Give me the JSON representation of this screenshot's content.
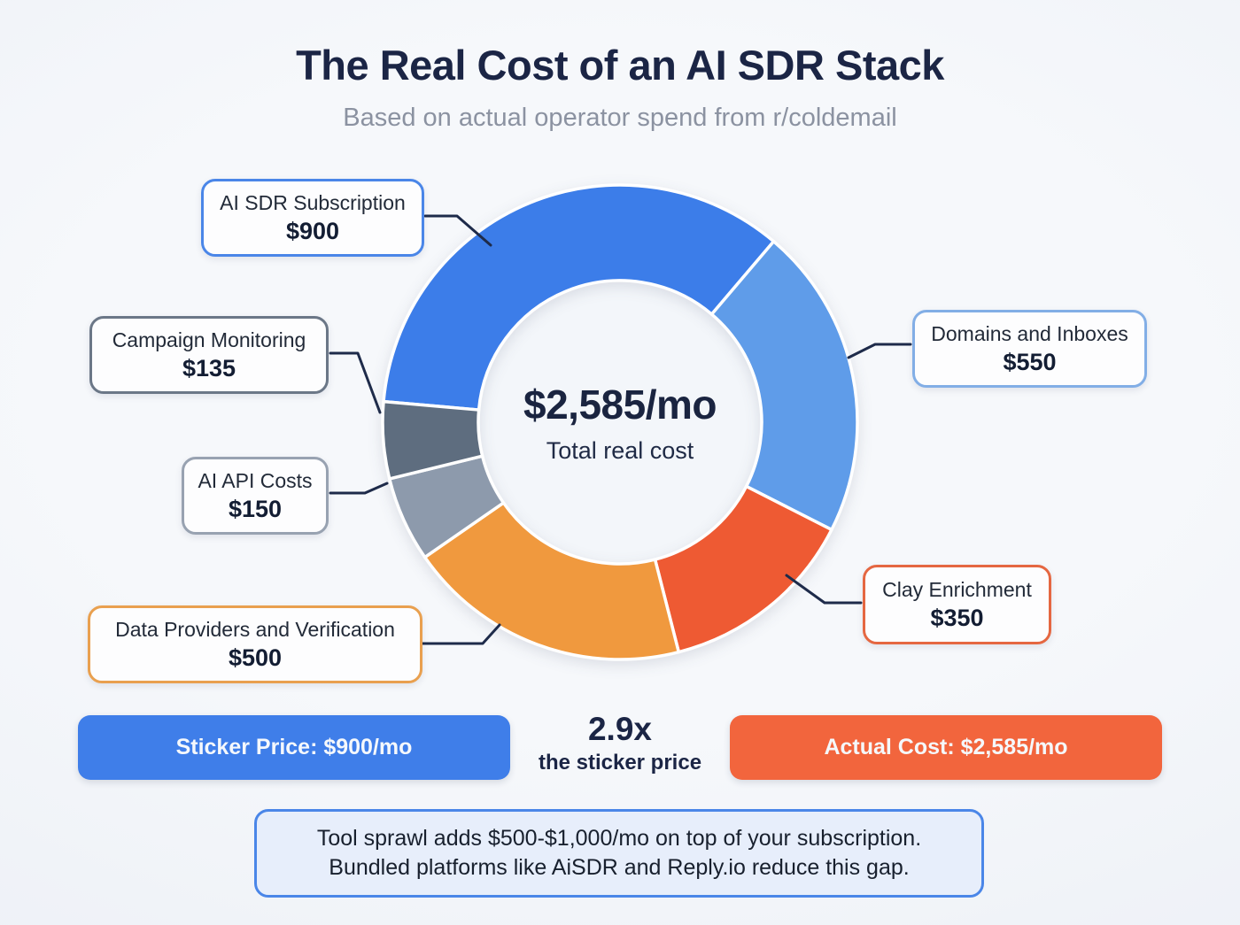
{
  "title": "The Real Cost of an AI SDR Stack",
  "subtitle": "Based on actual operator spend from r/coldemail",
  "center": {
    "total": "$2,585/mo",
    "caption": "Total real cost"
  },
  "chart_data": {
    "type": "pie",
    "subtype": "donut",
    "title": "AI SDR stack monthly cost breakdown",
    "total_value": 2585,
    "total_label": "$2,585/mo",
    "start_angle_clockwise_from_top_deg": -85,
    "legend_position": "callouts-around-chart",
    "segments": [
      {
        "label": "AI SDR Subscription",
        "value": 900,
        "display": "$900",
        "color": "#3c7de9",
        "box_border": "#4a86e8"
      },
      {
        "label": "Domains and Inboxes",
        "value": 550,
        "display": "$550",
        "color": "#5f9ce9",
        "box_border": "#82aee6"
      },
      {
        "label": "Clay Enrichment",
        "value": 350,
        "display": "$350",
        "color": "#ee5a33",
        "box_border": "#e56741"
      },
      {
        "label": "Data Providers and Verification",
        "value": 500,
        "display": "$500",
        "color": "#f0993e",
        "box_border": "#e9a04f"
      },
      {
        "label": "AI API Costs",
        "value": 150,
        "display": "$150",
        "color": "#8d9aac",
        "box_border": "#98a2b1"
      },
      {
        "label": "Campaign Monitoring",
        "value": 135,
        "display": "$135",
        "color": "#5e6d7f",
        "box_border": "#6b7787"
      }
    ]
  },
  "comparison": {
    "sticker": {
      "label": "Sticker Price: $900/mo",
      "color": "#3f7ee9"
    },
    "multiplier": {
      "big": "2.9x",
      "small": "the sticker price"
    },
    "actual": {
      "label": "Actual Cost: $2,585/mo",
      "color": "#f2653d"
    }
  },
  "note": {
    "line1": "Tool sprawl adds $500-$1,000/mo on top of your subscription.",
    "line2": "Bundled platforms like AiSDR and Reply.io reduce this gap.",
    "border_color": "#4a86e8",
    "fill_color": "#e7eefb"
  }
}
